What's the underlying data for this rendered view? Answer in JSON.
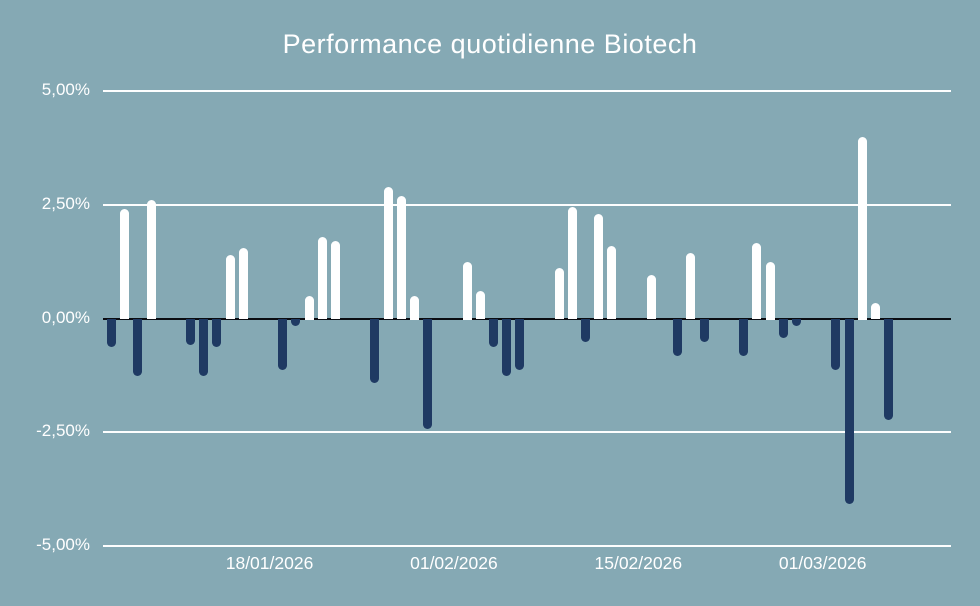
{
  "chart_data": {
    "type": "bar",
    "title": "Performance quotidienne Biotech",
    "unit": "percent",
    "ylim": [
      -5,
      5
    ],
    "grid": true,
    "y_ticks": [
      "5,00%",
      "2,50%",
      "0,00%",
      "-2,50%",
      "-5,00%"
    ],
    "y_tick_values": [
      5,
      2.5,
      0,
      -2.5,
      -5
    ],
    "x_tick_labels": [
      "18/01/2026",
      "01/02/2026",
      "15/02/2026",
      "01/03/2026"
    ],
    "x_tick_dates": [
      "18/01/2026",
      "01/02/2026",
      "15/02/2026",
      "01/03/2026"
    ],
    "series": [
      {
        "date": "06/01/2026",
        "value": -0.6
      },
      {
        "date": "07/01/2026",
        "value": 2.4
      },
      {
        "date": "08/01/2026",
        "value": -1.25
      },
      {
        "date": "09/01/2026",
        "value": 2.6
      },
      {
        "date": "12/01/2026",
        "value": -0.55
      },
      {
        "date": "13/01/2026",
        "value": -1.25
      },
      {
        "date": "14/01/2026",
        "value": -0.6
      },
      {
        "date": "15/01/2026",
        "value": 1.4
      },
      {
        "date": "16/01/2026",
        "value": 1.55
      },
      {
        "date": "19/01/2026",
        "value": -1.1
      },
      {
        "date": "20/01/2026",
        "value": -0.15
      },
      {
        "date": "21/01/2026",
        "value": 0.5
      },
      {
        "date": "22/01/2026",
        "value": 1.8
      },
      {
        "date": "23/01/2026",
        "value": 1.7
      },
      {
        "date": "26/01/2026",
        "value": -1.4
      },
      {
        "date": "27/01/2026",
        "value": 2.9
      },
      {
        "date": "28/01/2026",
        "value": 2.7
      },
      {
        "date": "29/01/2026",
        "value": 0.5
      },
      {
        "date": "30/01/2026",
        "value": -2.4
      },
      {
        "date": "02/02/2026",
        "value": 1.25
      },
      {
        "date": "03/02/2026",
        "value": 0.6
      },
      {
        "date": "04/02/2026",
        "value": -0.6
      },
      {
        "date": "05/02/2026",
        "value": -1.25
      },
      {
        "date": "06/02/2026",
        "value": -1.1
      },
      {
        "date": "09/02/2026",
        "value": 1.1
      },
      {
        "date": "10/02/2026",
        "value": 2.45
      },
      {
        "date": "11/02/2026",
        "value": -0.5
      },
      {
        "date": "12/02/2026",
        "value": 2.3
      },
      {
        "date": "13/02/2026",
        "value": 1.6
      },
      {
        "date": "16/02/2026",
        "value": 0.95
      },
      {
        "date": "17/02/2026",
        "value": 0.0
      },
      {
        "date": "18/02/2026",
        "value": -0.8
      },
      {
        "date": "19/02/2026",
        "value": 1.45
      },
      {
        "date": "20/02/2026",
        "value": -0.5
      },
      {
        "date": "23/02/2026",
        "value": -0.8
      },
      {
        "date": "24/02/2026",
        "value": 1.65
      },
      {
        "date": "25/02/2026",
        "value": 1.25
      },
      {
        "date": "26/02/2026",
        "value": -0.4
      },
      {
        "date": "27/02/2026",
        "value": -0.15
      },
      {
        "date": "02/03/2026",
        "value": -1.1
      },
      {
        "date": "03/03/2026",
        "value": -4.05
      },
      {
        "date": "04/03/2026",
        "value": 4.0
      },
      {
        "date": "05/03/2026",
        "value": 0.35
      },
      {
        "date": "06/03/2026",
        "value": -2.2
      }
    ],
    "colors": {
      "background": "#85a9b4",
      "positive_bar": "#ffffff",
      "negative_bar": "#1f3a63",
      "gridline": "#fdfefe",
      "zero_line": "#0b0d12",
      "text": "#ffffff"
    },
    "legend": null
  }
}
